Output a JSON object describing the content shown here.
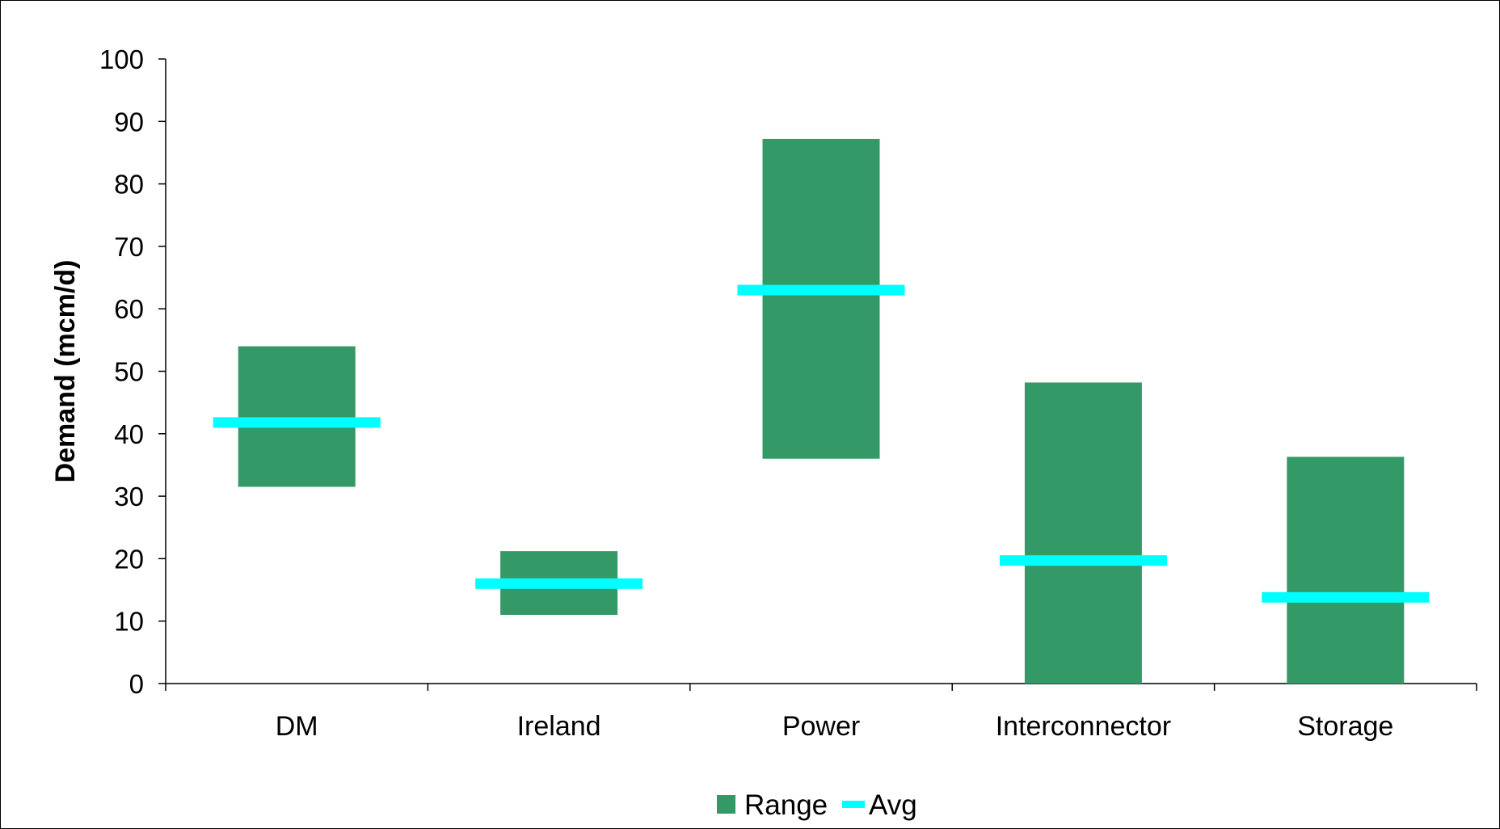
{
  "chart_data": {
    "type": "bar",
    "title": "",
    "xlabel": "",
    "ylabel": "Demand (mcm/d)",
    "ylim": [
      0,
      100
    ],
    "yticks": [
      "0",
      "10",
      "20",
      "30",
      "40",
      "50",
      "60",
      "70",
      "80",
      "90",
      "100"
    ],
    "categories": [
      "DM",
      "Ireland",
      "Power",
      "Interconnector",
      "Storage"
    ],
    "series": [
      {
        "name": "Range",
        "kind": "floating-bar",
        "color": "#339966",
        "low": [
          31.5,
          11.0,
          36.0,
          0.0,
          0.0
        ],
        "high": [
          54.0,
          21.2,
          87.2,
          48.2,
          36.3
        ]
      },
      {
        "name": "Avg",
        "kind": "marker-dash",
        "color": "#00FFFF",
        "values": [
          41.8,
          16.0,
          63.0,
          19.7,
          13.8
        ]
      }
    ],
    "grid": false,
    "legend": "bottom-center"
  }
}
